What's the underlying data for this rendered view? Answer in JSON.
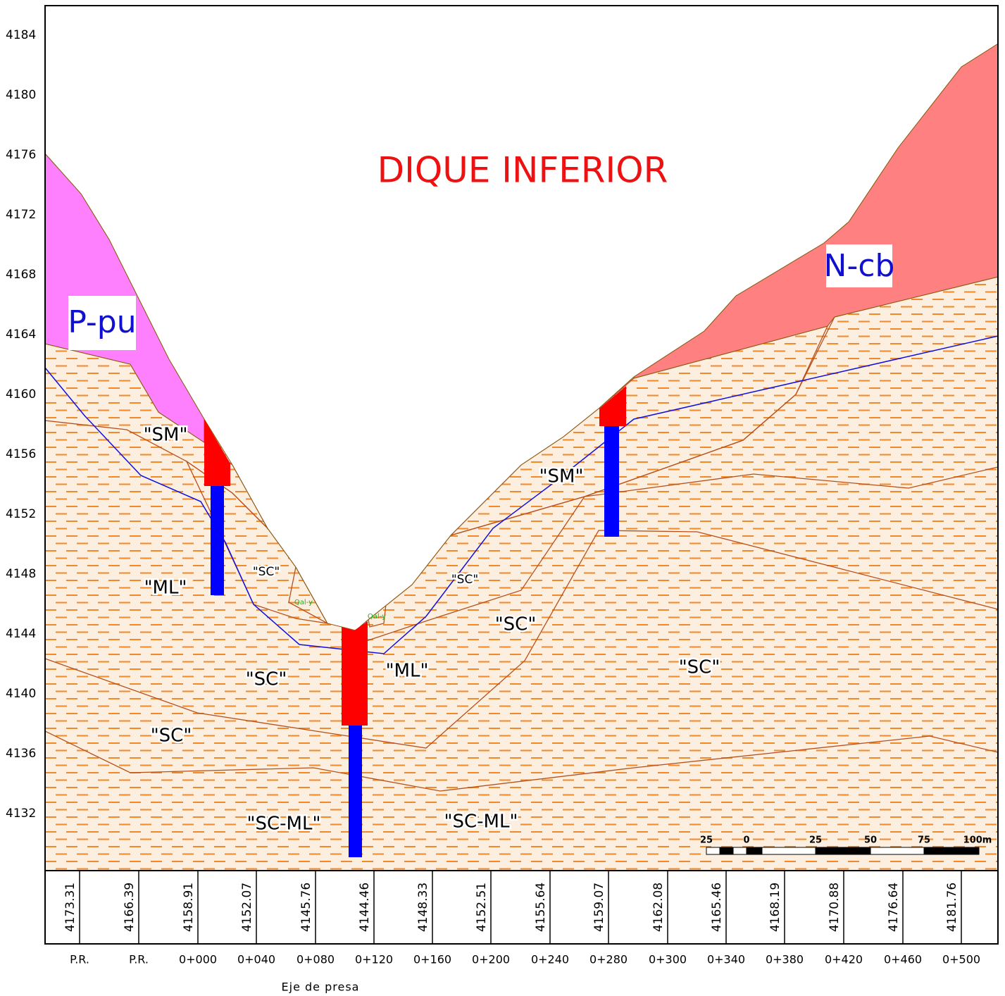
{
  "title": "DIQUE INFERIOR",
  "elevation_axis": [
    "4184",
    "4180",
    "4176",
    "4172",
    "4168",
    "4164",
    "4160",
    "4156",
    "4152",
    "4148",
    "4144",
    "4140",
    "4136",
    "4132"
  ],
  "units": [
    "P-pu",
    "N-cb",
    "\"SM\"",
    "\"SM\"",
    "\"ML\"",
    "\"ML\"",
    "\"SC\"",
    "\"SC\"",
    "\"SC\"",
    "\"SC\"",
    "\"SC\"",
    "\"SC\"",
    "\"SC-ML\"",
    "\"SC-ML\"",
    "Qal-y",
    "Qal-y"
  ],
  "scale_bar": [
    "25",
    "0",
    "25",
    "50",
    "75",
    "100m"
  ],
  "table": {
    "elevations": [
      "4173.31",
      "4166.39",
      "4158.91",
      "4152.07",
      "4145.76",
      "4144.46",
      "4148.33",
      "4152.51",
      "4155.64",
      "4159.07",
      "4162.08",
      "4165.46",
      "4168.19",
      "4170.88",
      "4176.64",
      "4181.76"
    ],
    "stations": [
      "P.R.",
      "P.R.",
      "0+000",
      "0+040",
      "0+080",
      "0+120",
      "0+160",
      "0+200",
      "0+240",
      "0+280",
      "0+300",
      "0+340",
      "0+380",
      "0+420",
      "0+460",
      "0+500"
    ],
    "axis_note": "Eje de presa"
  }
}
